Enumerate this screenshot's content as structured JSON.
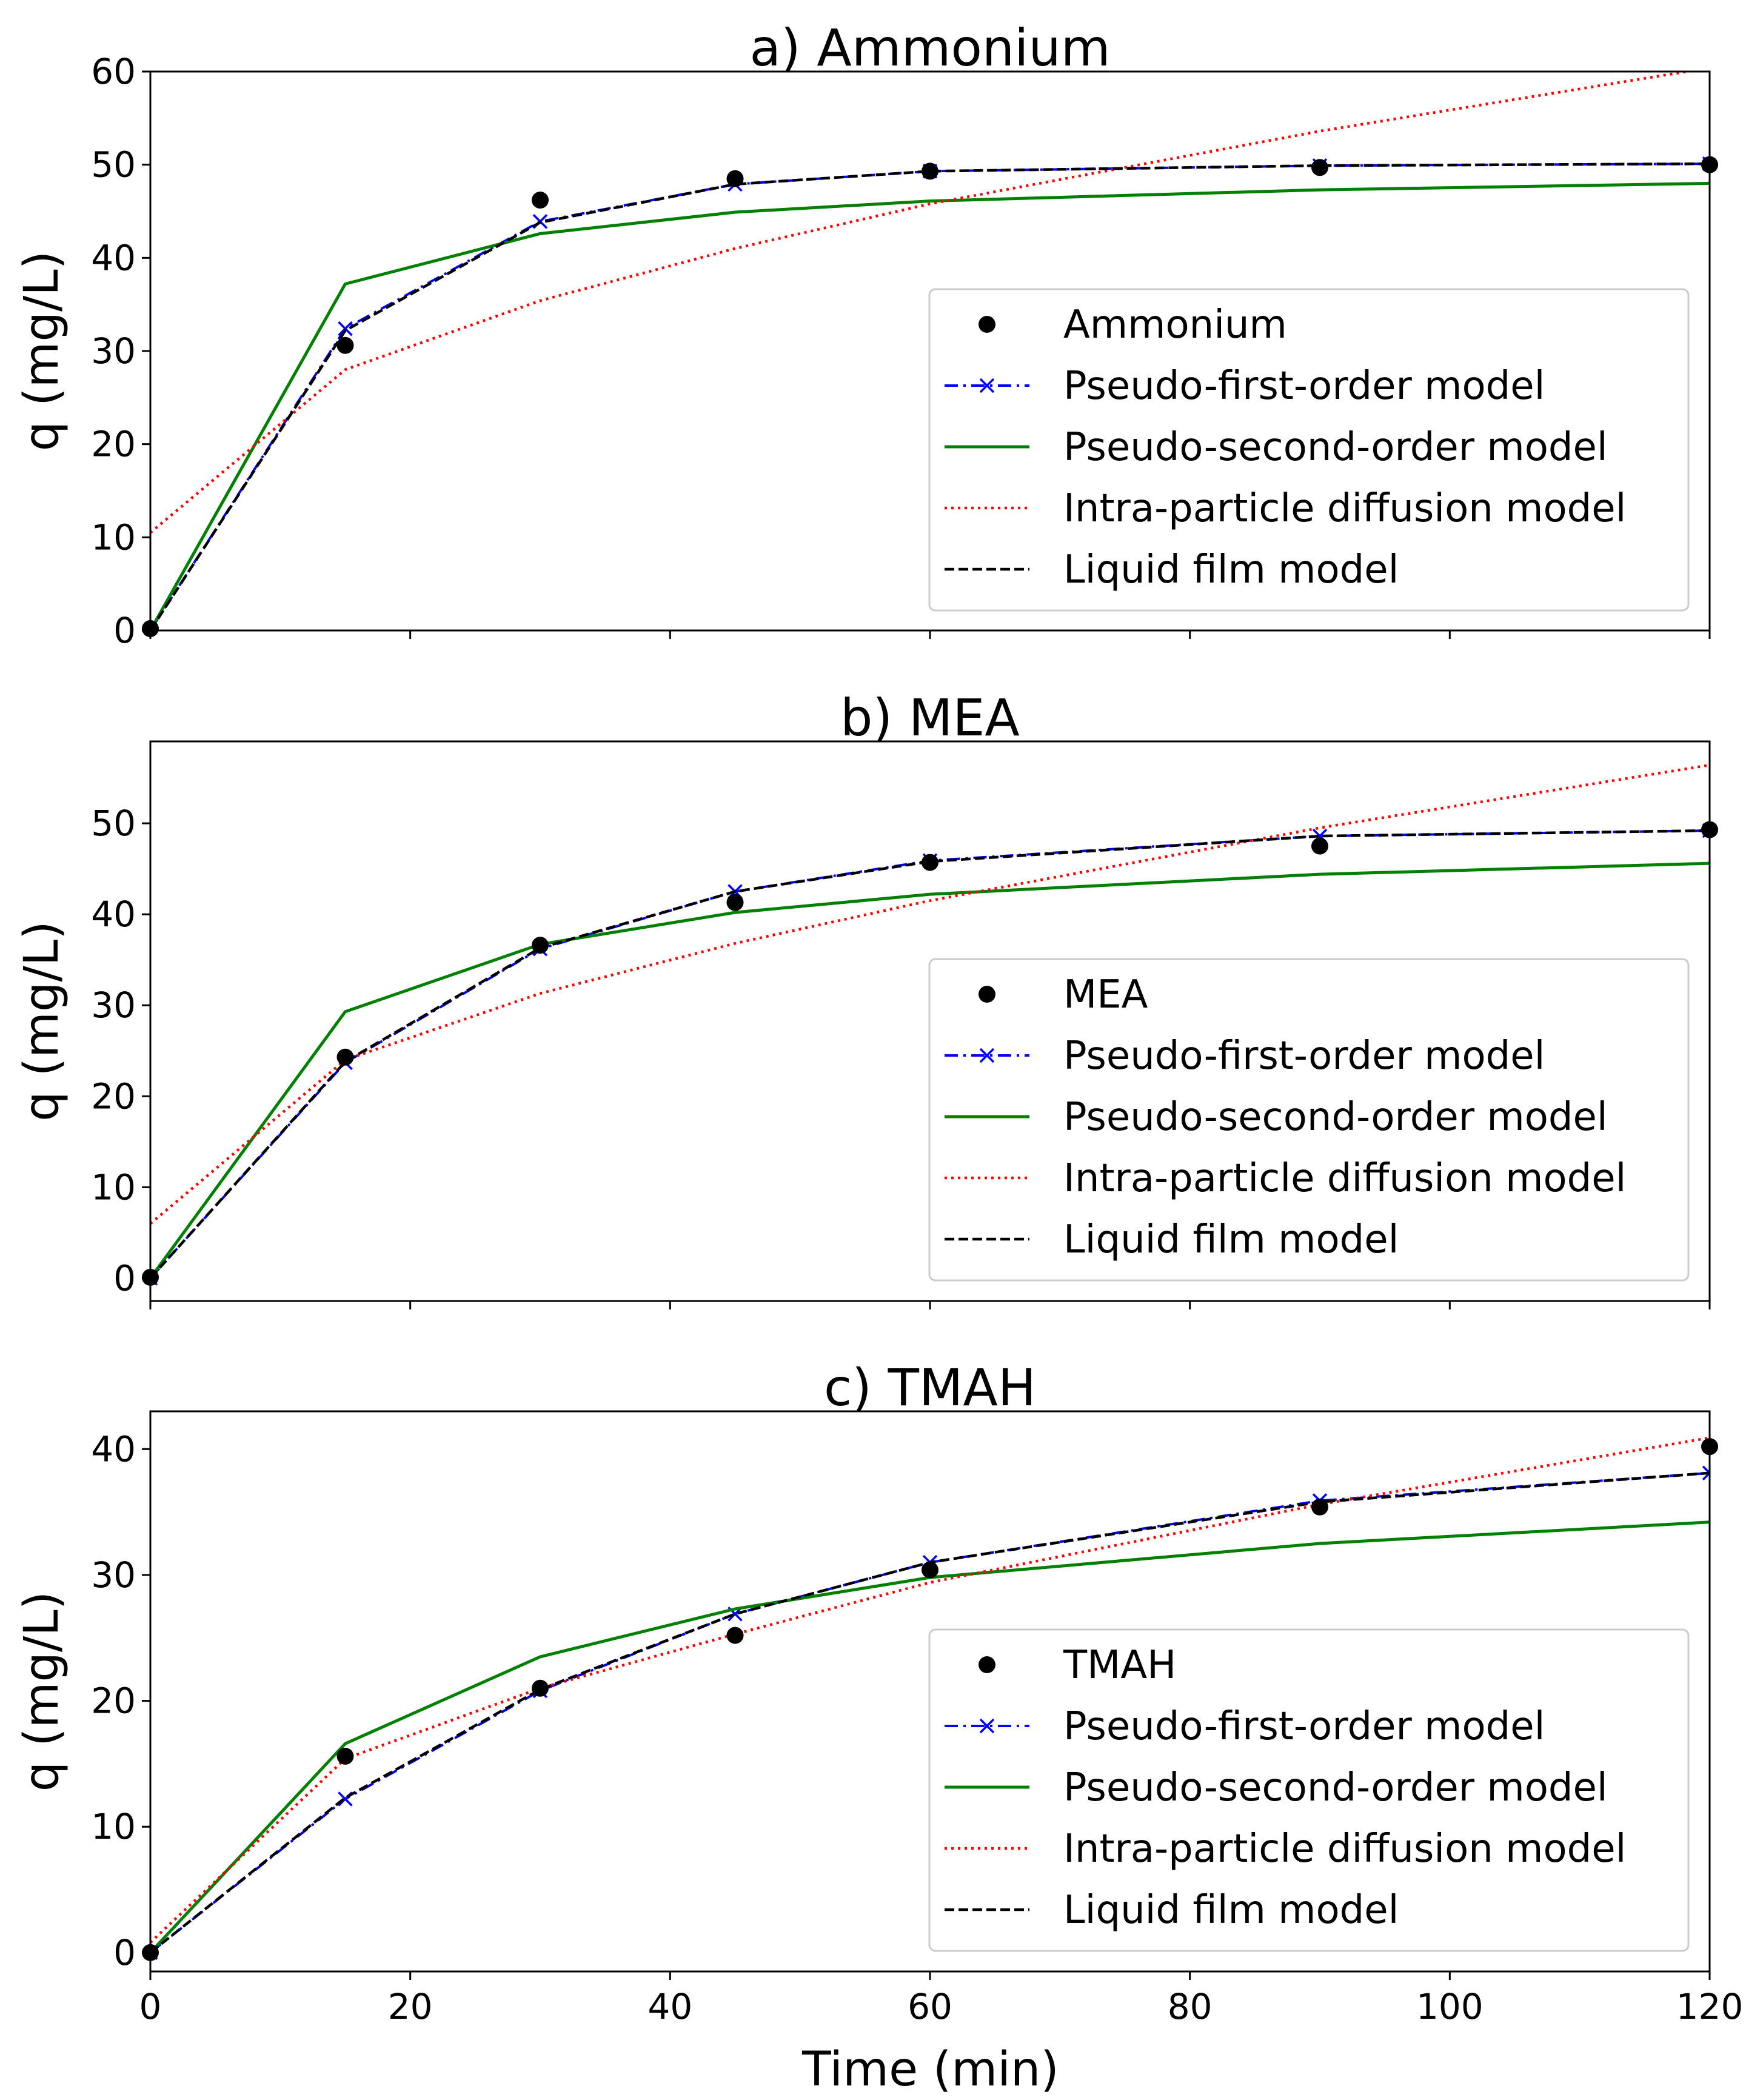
{
  "figure": {
    "xlabel": "Time (min)",
    "colors": {
      "data": "#000000",
      "pseudo_first": "#0000ff",
      "pseudo_second": "#008000",
      "intra_particle": "#ff0000",
      "liquid_film": "#000000"
    }
  },
  "chart_data": [
    {
      "type": "line",
      "title": "a) Ammonium",
      "xlabel": "Time (min)",
      "ylabel": "q (mg/L)",
      "xlim": [
        0,
        120
      ],
      "ylim": [
        0,
        60
      ],
      "xticks": [
        0,
        20,
        40,
        60,
        80,
        100,
        120
      ],
      "yticks": [
        0,
        10,
        20,
        30,
        40,
        50,
        60
      ],
      "legend_position": "center-right",
      "series": [
        {
          "name": "Ammonium",
          "style": "points",
          "x": [
            0,
            15,
            30,
            45,
            60,
            90,
            120
          ],
          "values": [
            0.2,
            30.6,
            46.2,
            48.5,
            49.3,
            49.7,
            50.0
          ]
        },
        {
          "name": "Pseudo-first-order model",
          "style": "dashdot-x",
          "x": [
            0,
            15,
            30,
            45,
            60,
            90,
            120
          ],
          "values": [
            0,
            32.4,
            43.9,
            47.9,
            49.3,
            49.9,
            50.1
          ]
        },
        {
          "name": "Pseudo-second-order model",
          "style": "solid",
          "x": [
            0,
            15,
            30,
            45,
            60,
            90,
            120
          ],
          "values": [
            0,
            37.2,
            42.6,
            44.9,
            46.1,
            47.3,
            48.0
          ]
        },
        {
          "name": "Intra-particle diffusion model",
          "style": "dotted",
          "x": [
            0,
            15,
            30,
            45,
            60,
            90,
            120
          ],
          "values": [
            10.5,
            28.0,
            35.4,
            41.0,
            45.8,
            53.6,
            60.4
          ]
        },
        {
          "name": "Liquid film model",
          "style": "dashed",
          "x": [
            0,
            15,
            30,
            45,
            60,
            90,
            120
          ],
          "values": [
            0,
            32.2,
            43.8,
            47.9,
            49.3,
            49.9,
            50.1
          ]
        }
      ]
    },
    {
      "type": "line",
      "title": "b) MEA",
      "xlabel": "",
      "ylabel": "q (mg/L)",
      "xlim": [
        0,
        120
      ],
      "ylim": [
        -2.5,
        59
      ],
      "xticks": [
        0,
        20,
        40,
        60,
        80,
        100,
        120
      ],
      "yticks": [
        0,
        10,
        20,
        30,
        40,
        50
      ],
      "legend_position": "center-right",
      "series": [
        {
          "name": "MEA",
          "style": "points",
          "x": [
            0,
            15,
            30,
            45,
            60,
            90,
            120
          ],
          "values": [
            0.1,
            24.3,
            36.6,
            41.3,
            45.7,
            47.5,
            49.3
          ]
        },
        {
          "name": "Pseudo-first-order model",
          "style": "dashdot-x",
          "x": [
            0,
            15,
            30,
            45,
            60,
            90,
            120
          ],
          "values": [
            0,
            23.7,
            36.2,
            42.5,
            45.9,
            48.6,
            49.2
          ]
        },
        {
          "name": "Pseudo-second-order model",
          "style": "solid",
          "x": [
            0,
            15,
            30,
            45,
            60,
            90,
            120
          ],
          "values": [
            0,
            29.3,
            36.7,
            40.2,
            42.2,
            44.4,
            45.6
          ]
        },
        {
          "name": "Intra-particle diffusion model",
          "style": "dotted",
          "x": [
            0,
            15,
            30,
            45,
            60,
            90,
            120
          ],
          "values": [
            6.0,
            24.0,
            31.3,
            36.8,
            41.5,
            49.5,
            56.4
          ]
        },
        {
          "name": "Liquid film model",
          "style": "dashed",
          "x": [
            0,
            15,
            30,
            45,
            60,
            90,
            120
          ],
          "values": [
            0,
            23.8,
            36.3,
            42.5,
            45.8,
            48.6,
            49.2
          ]
        }
      ]
    },
    {
      "type": "line",
      "title": "c) TMAH",
      "xlabel": "",
      "ylabel": "q (mg/L)",
      "xlim": [
        0,
        120
      ],
      "ylim": [
        -1.5,
        43
      ],
      "xticks": [
        0,
        20,
        40,
        60,
        80,
        100,
        120
      ],
      "yticks": [
        0,
        10,
        20,
        30,
        40
      ],
      "legend_position": "lower-right",
      "series": [
        {
          "name": "TMAH",
          "style": "points",
          "x": [
            0,
            15,
            30,
            45,
            60,
            90,
            120
          ],
          "values": [
            0,
            15.6,
            21.0,
            25.2,
            30.4,
            35.4,
            40.2
          ]
        },
        {
          "name": "Pseudo-first-order model",
          "style": "dashdot-x",
          "x": [
            0,
            15,
            30,
            45,
            60,
            90,
            120
          ],
          "values": [
            0,
            12.2,
            20.8,
            26.9,
            31.0,
            35.9,
            38.1
          ]
        },
        {
          "name": "Pseudo-second-order model",
          "style": "solid",
          "x": [
            0,
            15,
            30,
            45,
            60,
            90,
            120
          ],
          "values": [
            0,
            16.6,
            23.5,
            27.3,
            29.8,
            32.5,
            34.2
          ]
        },
        {
          "name": "Intra-particle diffusion model",
          "style": "dotted",
          "x": [
            0,
            15,
            30,
            45,
            60,
            90,
            120
          ],
          "values": [
            0.8,
            15.4,
            21.0,
            25.3,
            29.4,
            35.6,
            40.9
          ]
        },
        {
          "name": "Liquid film model",
          "style": "dashed",
          "x": [
            0,
            15,
            30,
            45,
            60,
            90,
            120
          ],
          "values": [
            0,
            12.3,
            20.9,
            26.9,
            31.0,
            35.8,
            38.1
          ]
        }
      ]
    }
  ]
}
